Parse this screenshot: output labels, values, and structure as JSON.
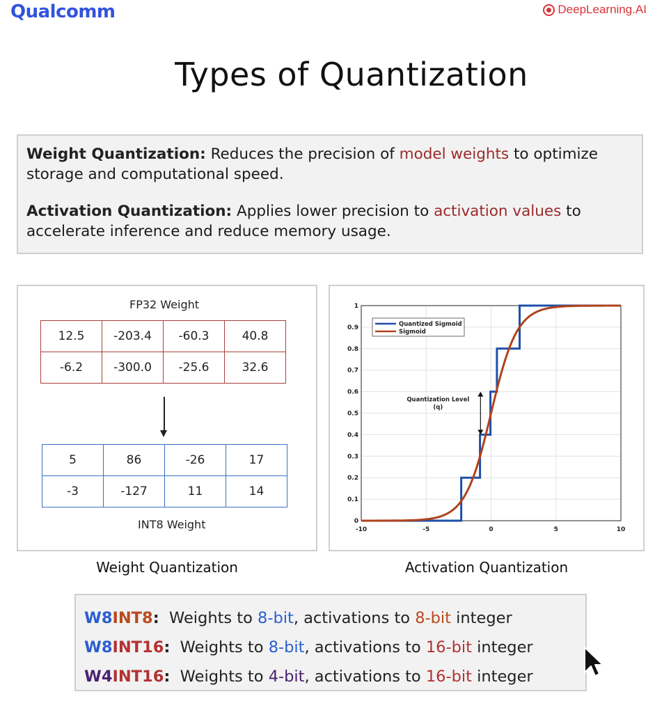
{
  "header": {
    "brand_left": "Qualcomm",
    "brand_right": "DeepLearning.AI"
  },
  "title": "Types of Quantization",
  "definitions": {
    "weight": {
      "term": "Weight Quantization:",
      "text_before": " Reduces the precision of ",
      "highlight": "model weights",
      "text_after": " to optimize storage and computational speed."
    },
    "activation": {
      "term": "Activation Quantization:",
      "text_before": " Applies lower precision to ",
      "highlight": "activation values",
      "text_after": " to accelerate inference and reduce memory usage."
    }
  },
  "weight_panel": {
    "fp32_label": "FP32 Weight",
    "fp32_rows": [
      [
        "12.5",
        "-203.4",
        "-60.3",
        "40.8"
      ],
      [
        "-6.2",
        "-300.0",
        "-25.6",
        "32.6"
      ]
    ],
    "int8_rows": [
      [
        "5",
        "86",
        "-26",
        "17"
      ],
      [
        "-3",
        "-127",
        "11",
        "14"
      ]
    ],
    "int8_label": "INT8 Weight",
    "caption": "Weight Quantization"
  },
  "activation_panel": {
    "caption": "Activation Quantization",
    "annotation_line1": "Quantization Level",
    "annotation_line2": "(q)"
  },
  "chart_data": {
    "type": "line",
    "xlim": [
      -10,
      10
    ],
    "ylim": [
      0,
      1
    ],
    "xticks": [
      "-10",
      "-5",
      "0",
      "5",
      "10"
    ],
    "yticks": [
      "0",
      "0.1",
      "0.2",
      "0.3",
      "0.4",
      "0.5",
      "0.6",
      "0.7",
      "0.8",
      "0.9",
      "1"
    ],
    "grid": true,
    "legend_position": "top-left",
    "series": [
      {
        "name": "Quantized Sigmoid",
        "color": "#1f4fa8",
        "step": true,
        "x": [
          -10,
          -2.3,
          -2.3,
          -0.85,
          -0.85,
          -0.05,
          -0.05,
          0.45,
          0.45,
          0.95,
          0.95,
          2.2,
          2.2,
          10
        ],
        "y": [
          0,
          0,
          0.2,
          0.2,
          0.4,
          0.4,
          0.6,
          0.6,
          0.8,
          0.8,
          0.8,
          0.8,
          1,
          1
        ]
      },
      {
        "name": "Sigmoid",
        "color": "#b0431c",
        "function": "sigmoid",
        "x_range": [
          -10,
          10
        ]
      }
    ]
  },
  "schemes": [
    {
      "w": "W8",
      "a": "INT8",
      "a_class": "c-orange",
      "mid": "Weights to ",
      "wbits": "8-bit",
      "mid2": ", activations to ",
      "abits": "8-bit",
      "end": " integer",
      "abits_class": "c-orange"
    },
    {
      "w": "W8",
      "a": "INT16",
      "a_class": "c-red",
      "mid": "Weights to ",
      "wbits": "8-bit",
      "mid2": ", activations to ",
      "abits": "16-bit",
      "end": " integer",
      "abits_class": "c-red"
    },
    {
      "w": "W4",
      "a": "INT16",
      "a_class": "c-red",
      "mid": "Weights to ",
      "wbits": "4-bit",
      "mid2": ", activations to ",
      "abits": "16-bit",
      "end": " integer",
      "abits_class": "c-red",
      "w_class": "c-purple"
    }
  ]
}
